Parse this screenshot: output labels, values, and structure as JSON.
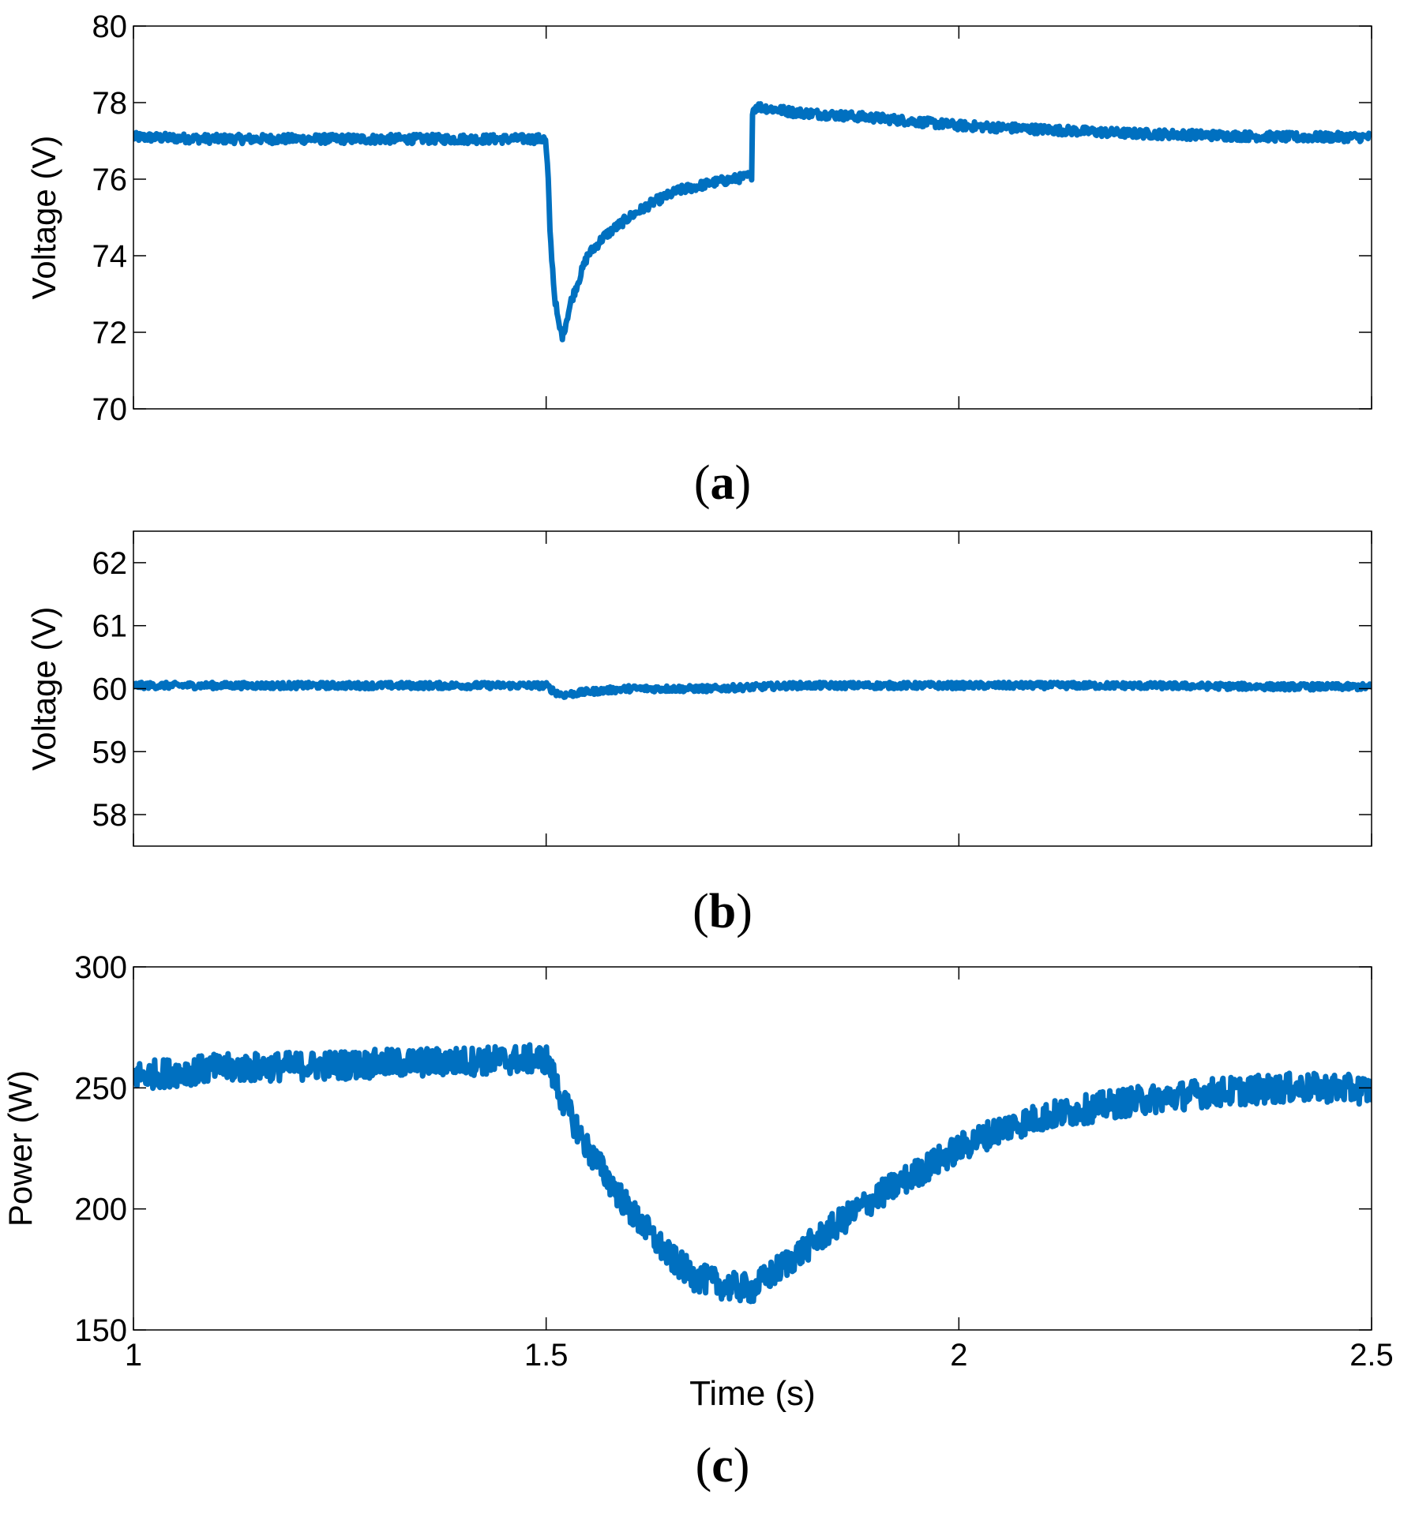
{
  "colors": {
    "line": "#0070C0",
    "axis": "#000000",
    "background": "#ffffff"
  },
  "chart_data": [
    {
      "type": "line",
      "panel_label": "(a)",
      "panel_letter": "a",
      "ylabel": "Voltage (V)",
      "xlabel": "",
      "xlim": [
        1,
        2.5
      ],
      "ylim": [
        70,
        80
      ],
      "yticks": [
        70,
        72,
        74,
        76,
        78,
        80
      ],
      "xticks": [
        1,
        1.5,
        2,
        2.5
      ],
      "show_x_tick_labels": false,
      "noise_amplitude": 0.12,
      "series": [
        {
          "name": "Voltage (a)",
          "x": [
            1.0,
            1.1,
            1.2,
            1.3,
            1.4,
            1.499,
            1.502,
            1.505,
            1.51,
            1.515,
            1.52,
            1.53,
            1.55,
            1.57,
            1.6,
            1.63,
            1.66,
            1.7,
            1.74,
            1.749,
            1.75,
            1.755,
            1.8,
            1.9,
            2.0,
            2.1,
            2.2,
            2.3,
            2.4,
            2.5
          ],
          "y": [
            77.1,
            77.05,
            77.05,
            77.05,
            77.05,
            77.05,
            76.2,
            74.5,
            73.0,
            72.2,
            71.9,
            72.8,
            74.0,
            74.5,
            75.0,
            75.4,
            75.7,
            75.9,
            76.05,
            76.1,
            77.8,
            77.9,
            77.75,
            77.6,
            77.4,
            77.3,
            77.2,
            77.15,
            77.1,
            77.1
          ]
        }
      ]
    },
    {
      "type": "line",
      "panel_label": "(b)",
      "panel_letter": "b",
      "ylabel": "Voltage (V)",
      "xlabel": "",
      "xlim": [
        1,
        2.5
      ],
      "ylim": [
        57.5,
        62.5
      ],
      "yticks": [
        58,
        59,
        60,
        61,
        62
      ],
      "xticks": [
        1,
        1.5,
        2,
        2.5
      ],
      "show_x_tick_labels": false,
      "noise_amplitude": 0.05,
      "series": [
        {
          "name": "Voltage (b)",
          "x": [
            1.0,
            1.2,
            1.4,
            1.5,
            1.51,
            1.52,
            1.55,
            1.6,
            1.7,
            1.8,
            2.0,
            2.2,
            2.4,
            2.5
          ],
          "y": [
            60.05,
            60.05,
            60.05,
            60.05,
            59.95,
            59.9,
            59.95,
            60.0,
            60.0,
            60.05,
            60.05,
            60.05,
            60.03,
            60.03
          ]
        }
      ]
    },
    {
      "type": "line",
      "panel_label": "(c)",
      "panel_letter": "c",
      "ylabel": "Power (W)",
      "xlabel": "Time (s)",
      "xlim": [
        1,
        2.5
      ],
      "ylim": [
        150,
        300
      ],
      "yticks": [
        150,
        200,
        250,
        300
      ],
      "xticks": [
        1,
        1.5,
        2,
        2.5
      ],
      "xtick_labels": [
        "1",
        "1.5",
        "2",
        "2.5"
      ],
      "show_x_tick_labels": true,
      "noise_amplitude": 6,
      "series": [
        {
          "name": "Power",
          "x": [
            1.0,
            1.1,
            1.2,
            1.3,
            1.4,
            1.5,
            1.52,
            1.55,
            1.6,
            1.65,
            1.68,
            1.72,
            1.75,
            1.8,
            1.85,
            1.9,
            1.95,
            2.0,
            2.05,
            2.1,
            2.15,
            2.2,
            2.25,
            2.3,
            2.35,
            2.4,
            2.45,
            2.5
          ],
          "y": [
            255,
            258,
            259,
            260,
            261,
            262,
            245,
            225,
            200,
            180,
            172,
            168,
            167,
            180,
            193,
            205,
            215,
            225,
            233,
            238,
            241,
            244,
            246,
            248,
            249,
            250,
            250,
            249
          ]
        }
      ]
    }
  ]
}
